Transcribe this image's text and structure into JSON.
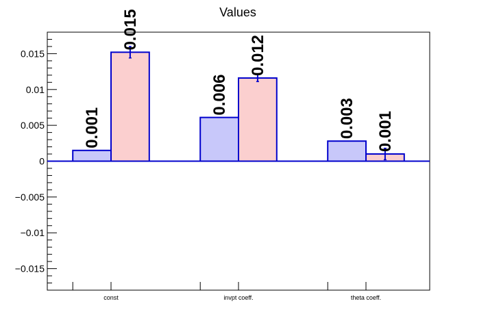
{
  "chart_data": {
    "type": "bar",
    "title": "Values",
    "categories": [
      "const",
      "invpt coeff.",
      "theta coeff."
    ],
    "series": [
      {
        "values": [
          0.0015,
          0.0061,
          0.0028
        ],
        "labels": [
          "0.001",
          "0.006",
          "0.003"
        ],
        "fill": "#c8c8fa",
        "stroke": "#0000cc"
      },
      {
        "values": [
          0.0152,
          0.0116,
          0.001
        ],
        "errors": [
          0.0008,
          0.0005,
          0.0008
        ],
        "labels": [
          "0.015",
          "0.012",
          "0.001"
        ],
        "fill": "#fbcfcf",
        "stroke": "#0000cc"
      }
    ],
    "ylim": [
      -0.018,
      0.018
    ],
    "yticks": [
      -0.015,
      -0.01,
      -0.005,
      0,
      0.005,
      0.01,
      0.015
    ],
    "ytick_labels": [
      "−0.015",
      "−0.01",
      "−0.005",
      "0",
      "0.005",
      "0.01",
      "0.015"
    ],
    "grid": false,
    "xlabel": "",
    "ylabel": ""
  }
}
